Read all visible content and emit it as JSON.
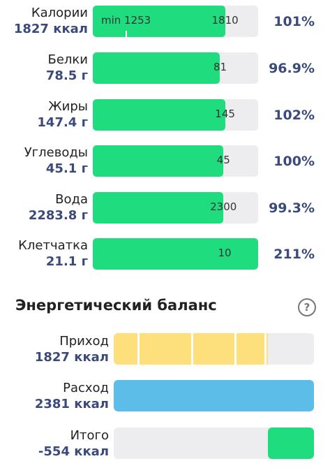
{
  "nutrients": [
    {
      "name": "Калории",
      "amount": "1827 ккал",
      "percent": "101%",
      "goal": "1810",
      "min_label": "min 1253",
      "fill_fraction": 0.8,
      "min_fraction": 0.2
    },
    {
      "name": "Белки",
      "amount": "78.5 г",
      "percent": "96.9%",
      "goal": "81",
      "fill_fraction": 0.77
    },
    {
      "name": "Жиры",
      "amount": "147.4 г",
      "percent": "102%",
      "goal": "145",
      "fill_fraction": 0.8
    },
    {
      "name": "Углеводы",
      "amount": "45.1 г",
      "percent": "100%",
      "goal": "45",
      "fill_fraction": 0.79
    },
    {
      "name": "Вода",
      "amount": "2283.8 г",
      "percent": "99.3%",
      "goal": "2300",
      "fill_fraction": 0.79
    },
    {
      "name": "Клетчатка",
      "amount": "21.1 г",
      "percent": "211%",
      "goal": "10",
      "fill_fraction": 1.0
    }
  ],
  "balance": {
    "title": "Энергетический баланс",
    "help_icon": "question-circle-icon",
    "income": {
      "label": "Приход",
      "value": "1827 ккал",
      "fill_fraction": 0.77,
      "color": "#fde07b"
    },
    "expense": {
      "label": "Расход",
      "value": "2381 ккал",
      "fill_fraction": 1.0,
      "color": "#5cbde8"
    },
    "total": {
      "label": "Итого",
      "value": "-554 ккал",
      "fill_start_fraction": 0.77,
      "color": "#1fdc7e"
    }
  },
  "colors": {
    "accent_text": "#3b4a7c",
    "progress_fill": "#1fdc7e",
    "track": "#ededf0"
  }
}
